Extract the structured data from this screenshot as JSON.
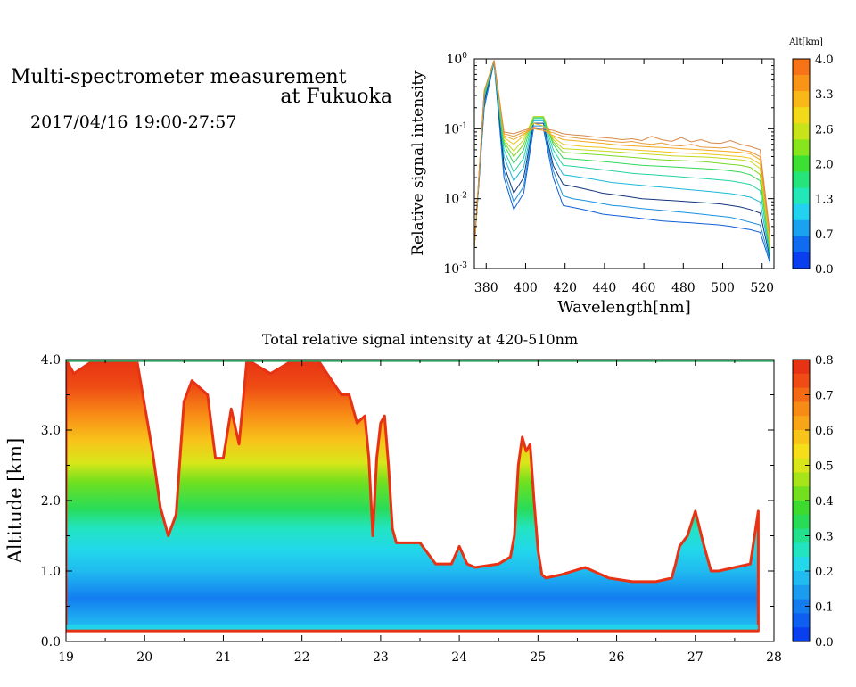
{
  "header": {
    "title_line1": "Multi-spectrometer measurement",
    "title_line2": "at Fukuoka",
    "subtitle": "2017/04/16 19:00-27:57"
  },
  "chart_data": [
    {
      "type": "line",
      "xlabel": "Wavelength[nm]",
      "ylabel": "Relative signal intensity",
      "xlim": [
        374,
        526
      ],
      "ylim": [
        0.001,
        1
      ],
      "yscale": "log",
      "xticks": [
        380,
        400,
        420,
        440,
        460,
        480,
        500,
        520
      ],
      "xtick_labels": [
        "380",
        "400",
        "420",
        "440",
        "460",
        "480",
        "500",
        "520"
      ],
      "yticks": [
        0.001,
        0.01,
        0.1,
        1
      ],
      "ytick_base": "10",
      "ytick_exps": [
        "-3",
        "-2",
        "-1",
        "0"
      ],
      "colorbar": {
        "title": "Alt[km]",
        "range": [
          0.0,
          4.0
        ],
        "tick_labels": [
          "0.0",
          "0.7",
          "1.3",
          "2.0",
          "2.6",
          "3.3",
          "4.0"
        ],
        "colors": [
          "#0a3ff0",
          "#0f6cf0",
          "#1aa2f0",
          "#22d2f0",
          "#22e8b8",
          "#25e47a",
          "#3ce032",
          "#86e51c",
          "#c8e31a",
          "#f2d91a",
          "#f9b718",
          "#f99416",
          "#f87316"
        ]
      },
      "x": [
        374,
        379,
        384,
        389,
        394,
        399,
        404,
        409,
        414,
        419,
        424,
        429,
        434,
        439,
        444,
        449,
        454,
        459,
        464,
        469,
        474,
        479,
        484,
        489,
        494,
        499,
        504,
        509,
        514,
        519,
        524
      ],
      "series": [
        {
          "altitude_km": 0.4,
          "color": "#0e5fd6",
          "values": [
            0.002,
            0.2,
            0.9,
            0.02,
            0.007,
            0.012,
            0.1,
            0.1,
            0.02,
            0.008,
            0.0075,
            0.007,
            0.0065,
            0.006,
            0.0058,
            0.0056,
            0.0054,
            0.0052,
            0.005,
            0.0048,
            0.0047,
            0.0046,
            0.0045,
            0.0044,
            0.0043,
            0.0042,
            0.004,
            0.0038,
            0.0036,
            0.0033,
            0.0012
          ]
        },
        {
          "altitude_km": 0.7,
          "color": "#1a90e0",
          "values": [
            0.002,
            0.22,
            0.9,
            0.025,
            0.009,
            0.015,
            0.11,
            0.11,
            0.025,
            0.011,
            0.01,
            0.0095,
            0.009,
            0.0085,
            0.008,
            0.0078,
            0.0075,
            0.0072,
            0.007,
            0.0068,
            0.0066,
            0.0064,
            0.0062,
            0.006,
            0.0058,
            0.0056,
            0.0054,
            0.005,
            0.0046,
            0.0042,
            0.0013
          ]
        },
        {
          "altitude_km": 1.0,
          "color": "#12347a",
          "values": [
            0.002,
            0.25,
            0.92,
            0.03,
            0.012,
            0.02,
            0.12,
            0.12,
            0.03,
            0.016,
            0.015,
            0.014,
            0.013,
            0.012,
            0.0115,
            0.011,
            0.0105,
            0.01,
            0.0098,
            0.0096,
            0.0094,
            0.0092,
            0.009,
            0.0088,
            0.0086,
            0.0084,
            0.008,
            0.0076,
            0.007,
            0.0062,
            0.0014
          ]
        },
        {
          "altitude_km": 1.3,
          "color": "#1cb8d8",
          "values": [
            0.002,
            0.28,
            0.92,
            0.04,
            0.018,
            0.028,
            0.13,
            0.13,
            0.04,
            0.022,
            0.021,
            0.02,
            0.019,
            0.018,
            0.017,
            0.0165,
            0.016,
            0.0155,
            0.015,
            0.0146,
            0.0142,
            0.0138,
            0.0134,
            0.013,
            0.0126,
            0.0122,
            0.0118,
            0.0112,
            0.0105,
            0.009,
            0.0015
          ]
        },
        {
          "altitude_km": 1.7,
          "color": "#22d4a0",
          "values": [
            0.002,
            0.3,
            0.94,
            0.05,
            0.024,
            0.038,
            0.14,
            0.14,
            0.05,
            0.03,
            0.029,
            0.028,
            0.027,
            0.026,
            0.025,
            0.024,
            0.023,
            0.0225,
            0.022,
            0.0215,
            0.021,
            0.0205,
            0.02,
            0.0195,
            0.019,
            0.0185,
            0.018,
            0.017,
            0.016,
            0.013,
            0.0016
          ]
        },
        {
          "altitude_km": 2.0,
          "color": "#32d858",
          "values": [
            0.002,
            0.32,
            0.94,
            0.06,
            0.032,
            0.05,
            0.145,
            0.145,
            0.06,
            0.038,
            0.037,
            0.036,
            0.035,
            0.034,
            0.033,
            0.032,
            0.031,
            0.03,
            0.0295,
            0.029,
            0.0285,
            0.028,
            0.0275,
            0.027,
            0.0265,
            0.026,
            0.025,
            0.024,
            0.022,
            0.018,
            0.0018
          ]
        },
        {
          "altitude_km": 2.4,
          "color": "#7ad824",
          "values": [
            0.002,
            0.33,
            0.95,
            0.065,
            0.04,
            0.06,
            0.15,
            0.15,
            0.065,
            0.046,
            0.045,
            0.044,
            0.043,
            0.042,
            0.041,
            0.04,
            0.039,
            0.038,
            0.037,
            0.036,
            0.0355,
            0.035,
            0.0345,
            0.034,
            0.033,
            0.032,
            0.031,
            0.03,
            0.028,
            0.022,
            0.0019
          ]
        },
        {
          "altitude_km": 2.8,
          "color": "#c4d81c",
          "values": [
            0.002,
            0.34,
            0.95,
            0.07,
            0.048,
            0.07,
            0.15,
            0.15,
            0.07,
            0.052,
            0.051,
            0.05,
            0.049,
            0.048,
            0.047,
            0.046,
            0.045,
            0.044,
            0.043,
            0.042,
            0.041,
            0.0405,
            0.04,
            0.0395,
            0.039,
            0.038,
            0.037,
            0.036,
            0.034,
            0.027,
            0.002
          ]
        },
        {
          "altitude_km": 3.1,
          "color": "#eec41a",
          "values": [
            0.002,
            0.34,
            0.95,
            0.075,
            0.06,
            0.08,
            0.12,
            0.11,
            0.075,
            0.06,
            0.058,
            0.056,
            0.055,
            0.054,
            0.052,
            0.051,
            0.05,
            0.049,
            0.048,
            0.047,
            0.046,
            0.045,
            0.0445,
            0.044,
            0.043,
            0.042,
            0.041,
            0.04,
            0.038,
            0.031,
            0.0022
          ]
        },
        {
          "altitude_km": 3.4,
          "color": "#f6a81a",
          "values": [
            0.002,
            0.35,
            0.95,
            0.08,
            0.07,
            0.085,
            0.1,
            0.095,
            0.08,
            0.07,
            0.068,
            0.066,
            0.064,
            0.062,
            0.06,
            0.058,
            0.057,
            0.056,
            0.055,
            0.054,
            0.053,
            0.052,
            0.051,
            0.05,
            0.049,
            0.048,
            0.047,
            0.046,
            0.044,
            0.036,
            0.0024
          ]
        },
        {
          "altitude_km": 3.7,
          "color": "#e89a3c",
          "values": [
            0.002,
            0.35,
            0.95,
            0.085,
            0.078,
            0.09,
            0.1,
            0.095,
            0.088,
            0.078,
            0.075,
            0.072,
            0.07,
            0.068,
            0.066,
            0.064,
            0.066,
            0.062,
            0.06,
            0.063,
            0.058,
            0.057,
            0.06,
            0.055,
            0.054,
            0.053,
            0.055,
            0.05,
            0.047,
            0.04,
            0.0026
          ]
        },
        {
          "altitude_km": 3.9,
          "color": "#d8884a",
          "values": [
            0.002,
            0.35,
            0.95,
            0.09,
            0.085,
            0.095,
            0.105,
            0.1,
            0.095,
            0.085,
            0.082,
            0.08,
            0.077,
            0.075,
            0.073,
            0.07,
            0.072,
            0.068,
            0.078,
            0.07,
            0.066,
            0.075,
            0.065,
            0.07,
            0.063,
            0.062,
            0.068,
            0.06,
            0.056,
            0.05,
            0.003
          ]
        }
      ]
    },
    {
      "type": "heatmap",
      "title": "Total relative signal intensity at 420-510nm",
      "ylabel": "Altitude [km]",
      "xlim": [
        19,
        28
      ],
      "ylim": [
        0.0,
        4.0
      ],
      "xticks": [
        19,
        20,
        21,
        22,
        23,
        24,
        25,
        26,
        27,
        28
      ],
      "xtick_labels": [
        "19",
        "20",
        "21",
        "22",
        "23",
        "24",
        "25",
        "26",
        "27",
        "28"
      ],
      "yticks": [
        0.0,
        1.0,
        2.0,
        3.0,
        4.0
      ],
      "ytick_labels": [
        "0.0",
        "1.0",
        "2.0",
        "3.0",
        "4.0"
      ],
      "colorbar": {
        "range": [
          0.0,
          0.8
        ],
        "tick_labels": [
          "0.0",
          "0.1",
          "0.2",
          "0.3",
          "0.4",
          "0.5",
          "0.6",
          "0.7",
          "0.8"
        ],
        "colors": [
          "#0a3ff0",
          "#0e5ef0",
          "#137df0",
          "#1a9cf0",
          "#20bbf0",
          "#22d8ea",
          "#22e4c0",
          "#23e08c",
          "#28dc58",
          "#3cdb2e",
          "#72e01e",
          "#a8e41a",
          "#d8e61a",
          "#f6df1a",
          "#f8c41a",
          "#f8a618",
          "#f88a16",
          "#f46a14",
          "#ee4c14",
          "#e83214"
        ]
      },
      "field_top_km": {
        "time": [
          19.0,
          19.1,
          19.3,
          19.6,
          19.9,
          20.1,
          20.2,
          20.3,
          20.4,
          20.5,
          20.6,
          20.8,
          20.9,
          21.0,
          21.1,
          21.2,
          21.3,
          21.6,
          21.9,
          22.2,
          22.5,
          22.6,
          22.7,
          22.8,
          22.85,
          22.9,
          22.95,
          23.0,
          23.05,
          23.1,
          23.15,
          23.2,
          23.3,
          23.5,
          23.7,
          23.9,
          24.0,
          24.1,
          24.2,
          24.5,
          24.65,
          24.7,
          24.75,
          24.8,
          24.85,
          24.9,
          24.95,
          25.0,
          25.05,
          25.1,
          25.3,
          25.6,
          25.9,
          26.2,
          26.5,
          26.7,
          26.75,
          26.8,
          26.9,
          27.0,
          27.1,
          27.2,
          27.3,
          27.5,
          27.7,
          27.8
        ],
        "altitude": [
          4.0,
          3.8,
          3.95,
          4.0,
          4.0,
          2.7,
          1.9,
          1.5,
          1.8,
          3.4,
          3.7,
          3.5,
          2.6,
          2.6,
          3.3,
          2.8,
          4.0,
          3.8,
          4.0,
          4.0,
          3.5,
          3.5,
          3.1,
          3.2,
          2.6,
          1.5,
          2.6,
          3.1,
          3.2,
          2.5,
          1.6,
          1.4,
          1.4,
          1.4,
          1.1,
          1.1,
          1.35,
          1.1,
          1.05,
          1.1,
          1.2,
          1.5,
          2.5,
          2.9,
          2.7,
          2.8,
          2.0,
          1.3,
          0.95,
          0.9,
          0.95,
          1.05,
          0.9,
          0.85,
          0.85,
          0.9,
          1.1,
          1.35,
          1.5,
          1.85,
          1.4,
          1.0,
          1.0,
          1.05,
          1.1,
          1.85
        ]
      }
    }
  ]
}
